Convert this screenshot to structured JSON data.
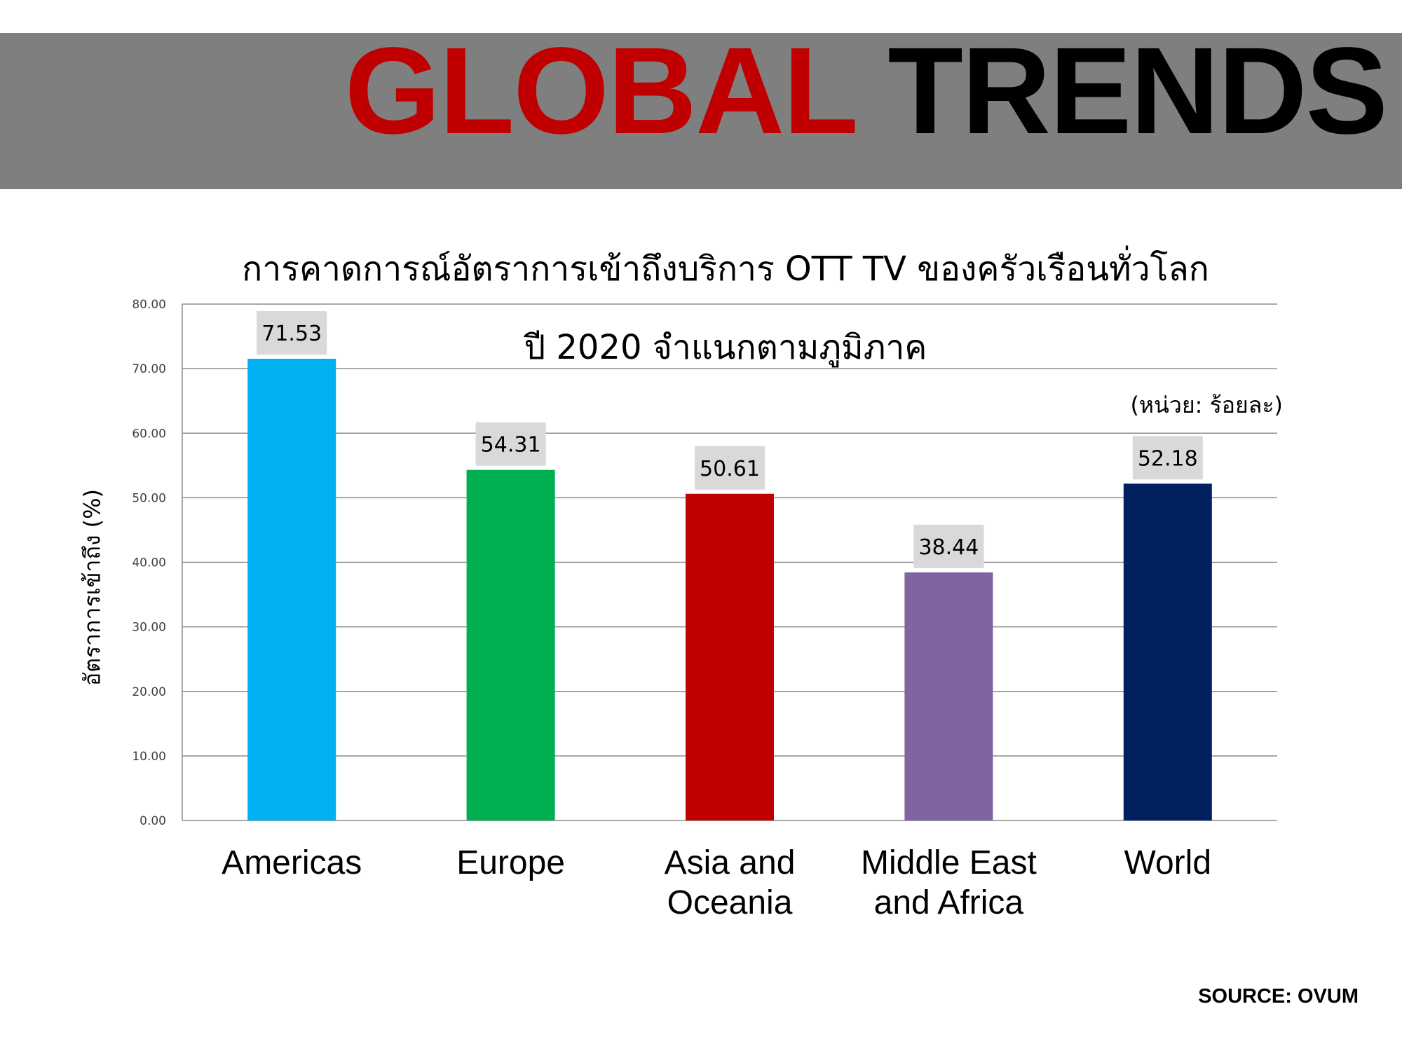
{
  "header": {
    "title_part1": "GLOBAL",
    "title_part2": "TRENDS",
    "title_part1_color": "#c00000",
    "title_part2_color": "#000000",
    "band_color": "#7f7f7f"
  },
  "unit_note": "(หน่วย: ร้อยละ)",
  "source": "SOURCE: OVUM",
  "chart_data": {
    "type": "bar",
    "title": "การคาดการณ์อัตราการเข้าถึงบริการ OTT TV ของครัวเรือนทั่วโลก",
    "subtitle": "ปี 2020 จำแนกตามภูมิภาค",
    "xlabel": "",
    "ylabel": "อัตราการเข้าถึง (%)",
    "ylim": [
      0,
      80
    ],
    "yticks": [
      "0.00",
      "10.00",
      "20.00",
      "30.00",
      "40.00",
      "50.00",
      "60.00",
      "70.00",
      "80.00"
    ],
    "grid": true,
    "legend": "none",
    "categories": [
      [
        "Americas"
      ],
      [
        "Europe"
      ],
      [
        "Asia and",
        "Oceania"
      ],
      [
        "Middle East",
        "and Africa"
      ],
      [
        "World"
      ]
    ],
    "values": [
      71.53,
      54.31,
      50.61,
      38.44,
      52.18
    ],
    "value_labels": [
      "71.53",
      "54.31",
      "50.61",
      "38.44",
      "52.18"
    ],
    "colors": [
      "#00b0f0",
      "#00b050",
      "#c00000",
      "#8064a2",
      "#002060"
    ]
  }
}
